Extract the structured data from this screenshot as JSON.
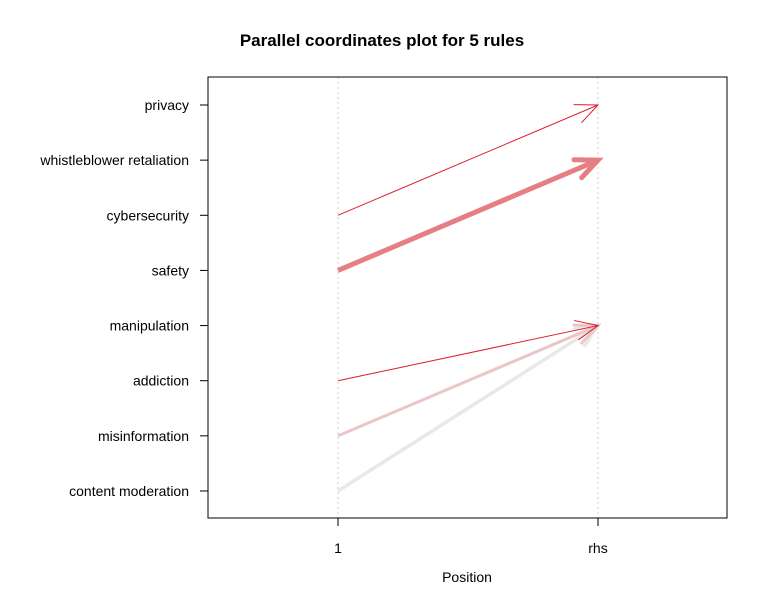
{
  "chart_data": {
    "type": "parallel-coordinates",
    "title": "Parallel coordinates plot for 5 rules",
    "xlabel": "Position",
    "x_axis_labels": [
      "1",
      "rhs"
    ],
    "items": [
      "privacy",
      "whistleblower retaliation",
      "cybersecurity",
      "safety",
      "manipulation",
      "addiction",
      "misinformation",
      "content moderation"
    ],
    "grid": "vertical dotted lines at each position",
    "rules": [
      {
        "from": "cybersecurity",
        "to": "privacy",
        "width": 1,
        "color": "#dd1c2c"
      },
      {
        "from": "safety",
        "to": "whistleblower retaliation",
        "width": 5,
        "color": "#e67f83"
      },
      {
        "from": "addiction",
        "to": "manipulation",
        "width": 1,
        "color": "#dd1c2c"
      },
      {
        "from": "misinformation",
        "to": "manipulation",
        "width": 3,
        "color": "#eac6c7"
      },
      {
        "from": "content moderation",
        "to": "manipulation",
        "width": 3.5,
        "color": "#e8e8e8"
      }
    ]
  }
}
